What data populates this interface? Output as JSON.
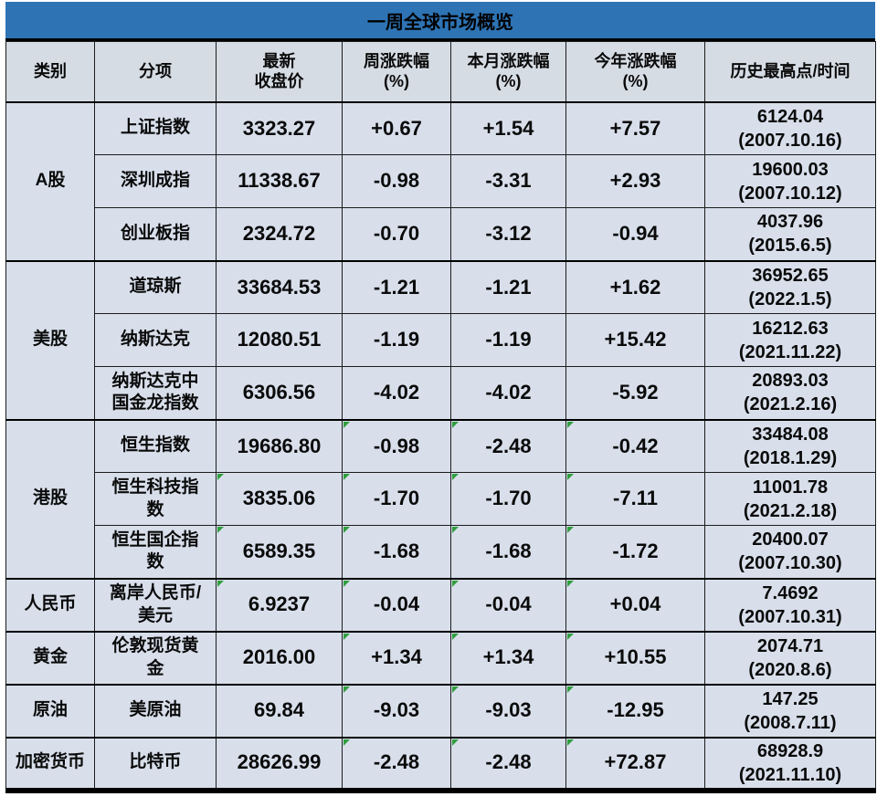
{
  "colors": {
    "title_bar": "#2E74B5",
    "header_bg": "#D6DCE4",
    "body_bg": "#D8DFEB",
    "indicator_green": "#2F9E3D"
  },
  "chart_data": {
    "type": "table",
    "title": "一周全球市场概览",
    "columns": [
      "类别",
      "分项",
      "最新\n收盘价",
      "周涨跌幅\n(%)",
      "本月涨跌幅\n(%)",
      "今年涨跌幅\n(%)",
      "历史最高点/时间"
    ],
    "rows": [
      {
        "category": "A股",
        "name": "上证指数",
        "close": "3323.27",
        "week": "+0.67",
        "month": "+1.54",
        "ytd": "+7.57",
        "high": "6124.04",
        "high_date": "(2007.10.16)",
        "indicators": []
      },
      {
        "category": "A股",
        "name": "深圳成指",
        "close": "11338.67",
        "week": "-0.98",
        "month": "-3.31",
        "ytd": "+2.93",
        "high": "19600.03",
        "high_date": "(2007.10.12)",
        "indicators": []
      },
      {
        "category": "A股",
        "name": "创业板指",
        "close": "2324.72",
        "week": "-0.70",
        "month": "-3.12",
        "ytd": "-0.94",
        "high": "4037.96",
        "high_date": "(2015.6.5)",
        "indicators": []
      },
      {
        "category": "美股",
        "name": "道琼斯",
        "close": "33684.53",
        "week": "-1.21",
        "month": "-1.21",
        "ytd": "+1.62",
        "high": "36952.65",
        "high_date": "(2022.1.5)",
        "indicators": []
      },
      {
        "category": "美股",
        "name": "纳斯达克",
        "close": "12080.51",
        "week": "-1.19",
        "month": "-1.19",
        "ytd": "+15.42",
        "high": "16212.63",
        "high_date": "(2021.11.22)",
        "indicators": []
      },
      {
        "category": "美股",
        "name": "纳斯达克中国金龙指数",
        "close": "6306.56",
        "week": "-4.02",
        "month": "-4.02",
        "ytd": "-5.92",
        "high": "20893.03",
        "high_date": "(2021.2.16)",
        "indicators": []
      },
      {
        "category": "港股",
        "name": "恒生指数",
        "close": "19686.80",
        "week": "-0.98",
        "month": "-2.48",
        "ytd": "-0.42",
        "high": "33484.08",
        "high_date": "(2018.1.29)",
        "indicators": [
          "week",
          "month",
          "ytd"
        ]
      },
      {
        "category": "港股",
        "name": "恒生科技指数",
        "close": "3835.06",
        "week": "-1.70",
        "month": "-1.70",
        "ytd": "-7.11",
        "high": "11001.78",
        "high_date": "(2021.2.18)",
        "indicators": [
          "close",
          "week",
          "month",
          "ytd"
        ]
      },
      {
        "category": "港股",
        "name": "恒生国企指数",
        "close": "6589.35",
        "week": "-1.68",
        "month": "-1.68",
        "ytd": "-1.72",
        "high": "20400.07",
        "high_date": "(2007.10.30)",
        "indicators": [
          "close",
          "week",
          "month",
          "ytd"
        ]
      },
      {
        "category": "人民币",
        "name": "离岸人民币/美元",
        "close": "6.9237",
        "week": "-0.04",
        "month": "-0.04",
        "ytd": "+0.04",
        "high": "7.4692",
        "high_date": "(2007.10.31)",
        "indicators": [
          "close",
          "week",
          "month",
          "ytd"
        ]
      },
      {
        "category": "黄金",
        "name": "伦敦现货黄金",
        "close": "2016.00",
        "week": "+1.34",
        "month": "+1.34",
        "ytd": "+10.55",
        "high": "2074.71",
        "high_date": "(2020.8.6)",
        "indicators": [
          "week",
          "month",
          "ytd"
        ]
      },
      {
        "category": "原油",
        "name": "美原油",
        "close": "69.84",
        "week": "-9.03",
        "month": "-9.03",
        "ytd": "-12.95",
        "high": "147.25",
        "high_date": "(2008.7.11)",
        "indicators": [
          "week",
          "month",
          "ytd"
        ]
      },
      {
        "category": "加密货币",
        "name": "比特币",
        "close": "28626.99",
        "week": "-2.48",
        "month": "-2.48",
        "ytd": "+72.87",
        "high": "68928.9",
        "high_date": "(2021.11.10)",
        "indicators": [
          "week",
          "month",
          "ytd"
        ]
      }
    ]
  }
}
